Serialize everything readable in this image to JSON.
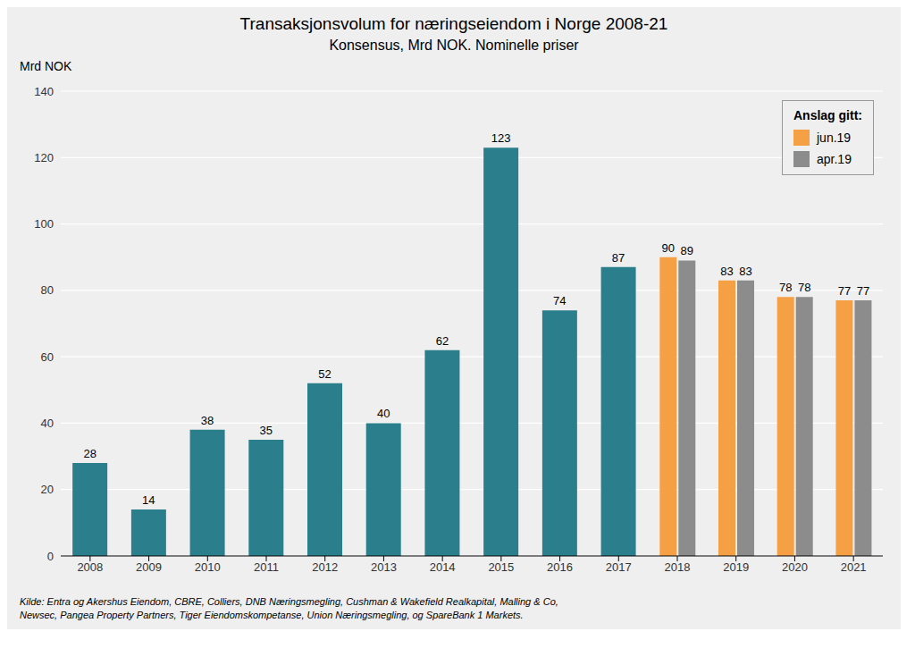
{
  "chart_data": {
    "type": "bar",
    "title": "Transaksjonsvolum for næringseiendom i Norge 2008-21",
    "subtitle": "Konsensus, Mrd NOK. Nominelle priser",
    "y_label": "Mrd NOK",
    "annotations": [
      "Kilde: Entra og Akershus Eiendom, CBRE, Colliers, DNB Næringsmegling, Cushman & Wakefield Realkapital, Malling & Co,",
      "Newsec, Pangea Property Partners, Tiger Eiendomskompetanse, Union Næringsmegling, og SpareBank 1 Markets."
    ],
    "categories": [
      "2008",
      "2009",
      "2010",
      "2011",
      "2012",
      "2013",
      "2014",
      "2015",
      "2016",
      "2017",
      "2018",
      "2019",
      "2020",
      "2021"
    ],
    "series": [
      {
        "color": "#2B7F8C",
        "values": [
          28,
          14,
          38,
          35,
          52,
          40,
          62,
          123,
          74,
          87,
          null,
          null,
          null,
          null
        ]
      },
      {
        "name": "jun.19",
        "color": "#F5A044",
        "values": [
          null,
          null,
          null,
          null,
          null,
          null,
          null,
          null,
          null,
          null,
          90,
          83,
          78,
          77
        ]
      },
      {
        "name": "apr.19",
        "color": "#8C8C8C",
        "values": [
          null,
          null,
          null,
          null,
          null,
          null,
          null,
          null,
          null,
          null,
          89,
          83,
          78,
          77
        ]
      }
    ],
    "legend_title": "Anslag gitt:",
    "legend": "upper right",
    "ylim": [
      0,
      140
    ],
    "yticks": [
      0,
      20,
      40,
      60,
      80,
      100,
      120,
      140
    ],
    "grid": true,
    "data_labels": true
  }
}
